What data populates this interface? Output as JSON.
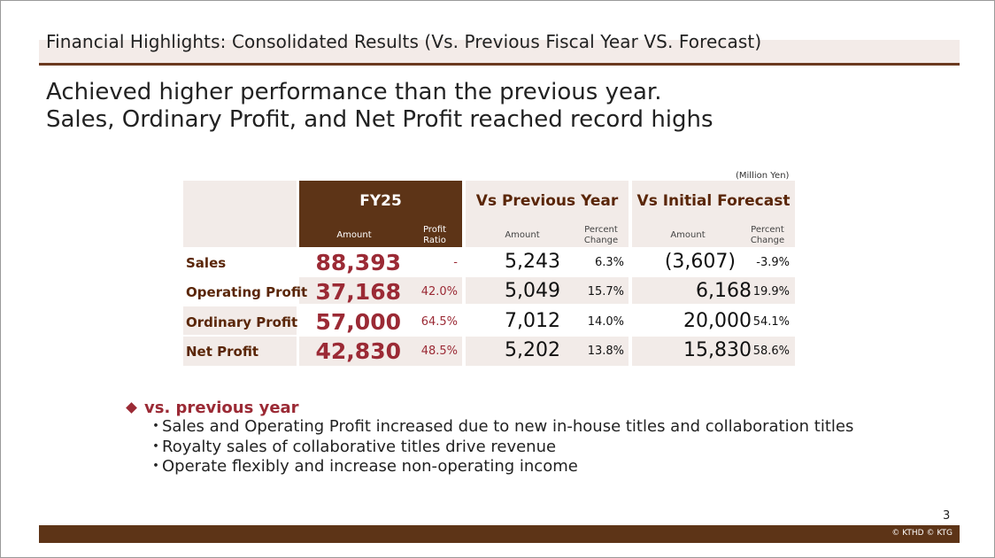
{
  "slide_title": "Financial Highlights: Consolidated Results (Vs. Previous Fiscal Year  VS. Forecast)",
  "headline": {
    "line1": "Achieved higher performance than the previous year.",
    "line2": "Sales, Ordinary Profit, and Net Profit reached record highs"
  },
  "table": {
    "unit_note": "(Million Yen)",
    "groups": {
      "fy": "FY25",
      "prev": "Vs Previous Year",
      "forecast": "Vs Initial Forecast"
    },
    "subheaders": {
      "amount": "Amount",
      "profit_ratio": "Profit Ratio",
      "percent_change": "Percent Change"
    },
    "rows": [
      {
        "label": "Sales",
        "fy_amount": "88,393",
        "profit_ratio": "-",
        "prev_amount": "5,243",
        "prev_pct": "6.3%",
        "fc_amount": "(3,607)",
        "fc_pct": "-3.9%"
      },
      {
        "label": "Operating Profit",
        "fy_amount": "37,168",
        "profit_ratio": "42.0%",
        "prev_amount": "5,049",
        "prev_pct": "15.7%",
        "fc_amount": "6,168",
        "fc_pct": "19.9%"
      },
      {
        "label": "Ordinary Profit",
        "fy_amount": "57,000",
        "profit_ratio": "64.5%",
        "prev_amount": "7,012",
        "prev_pct": "14.0%",
        "fc_amount": "20,000",
        "fc_pct": "54.1%"
      },
      {
        "label": "Net Profit",
        "fy_amount": "42,830",
        "profit_ratio": "48.5%",
        "prev_amount": "5,202",
        "prev_pct": "13.8%",
        "fc_amount": "15,830",
        "fc_pct": "58.6%"
      }
    ]
  },
  "bullets": {
    "heading": "vs. previous year",
    "marker": "・",
    "items": [
      "Sales and Operating Profit increased due to new in-house titles and collaboration titles",
      "Royalty sales of collaborative titles drive revenue",
      "Operate flexibly and increase non-operating income"
    ]
  },
  "page_number": "3",
  "copyright": "© KTHD © KTG",
  "colors": {
    "brown": "#5d3417",
    "accent_red": "#9b2a35",
    "light_bg": "#f2ebe8"
  }
}
